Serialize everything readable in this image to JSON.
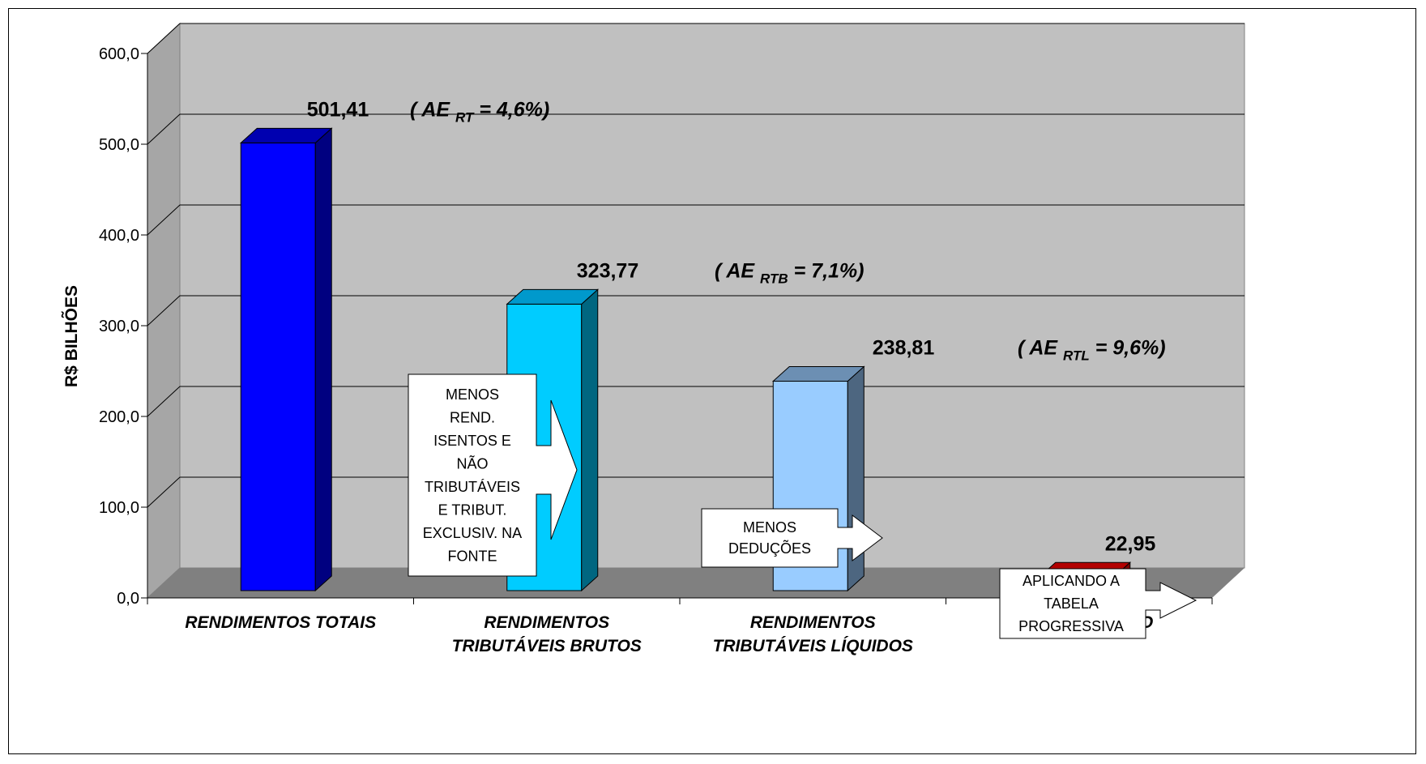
{
  "chart_data": {
    "type": "bar",
    "ylabel": "R$ BILHÕES",
    "ylim": [
      0,
      600
    ],
    "yticks": [
      "0,0",
      "100,0",
      "200,0",
      "300,0",
      "400,0",
      "500,0",
      "600,0"
    ],
    "ytick_values": [
      0,
      100,
      200,
      300,
      400,
      500,
      600
    ],
    "categories": [
      [
        "RENDIMENTOS TOTAIS"
      ],
      [
        "RENDIMENTOS",
        "TRIBUTÁVEIS BRUTOS"
      ],
      [
        "RENDIMENTOS",
        "TRIBUTÁVEIS LÍQUIDOS"
      ],
      [
        "IMPOSTO DEVIDO"
      ]
    ],
    "values": [
      501.41,
      323.77,
      238.81,
      22.95
    ],
    "value_labels": [
      "501,41",
      "323,77",
      "238,81",
      "22,95"
    ],
    "annotations": [
      {
        "pre": "( AE ",
        "sub": "RT",
        "post": " = 4,6%)"
      },
      {
        "pre": "( AE ",
        "sub": "RTB",
        "post": " = 7,1%)"
      },
      {
        "pre": "( AE ",
        "sub": "RTL",
        "post": " = 9,6%)"
      }
    ],
    "callouts": [
      [
        "MENOS",
        "REND.",
        "ISENTOS E",
        "NÃO",
        "TRIBUTÁVEIS",
        "E TRIBUT.",
        "EXCLUSIV. NA",
        "FONTE"
      ],
      [
        "MENOS",
        "DEDUÇÕES"
      ],
      [
        "APLICANDO A",
        "TABELA",
        "PROGRESSIVA"
      ]
    ],
    "colors": {
      "bars": [
        "#0000FF",
        "#00CCFF",
        "#99CCFF",
        "#FF0000"
      ],
      "bar_sides": [
        "#000080",
        "#006680",
        "#4D6680",
        "#800000"
      ],
      "bar_tops": [
        "#0000B0",
        "#0099CC",
        "#6C8FB3",
        "#B30000"
      ],
      "plot_back": "#C0C0C0",
      "plot_side": "#A6A6A6",
      "floor": "#808080",
      "grid": "#000000"
    },
    "grid": true,
    "legend": "none"
  }
}
